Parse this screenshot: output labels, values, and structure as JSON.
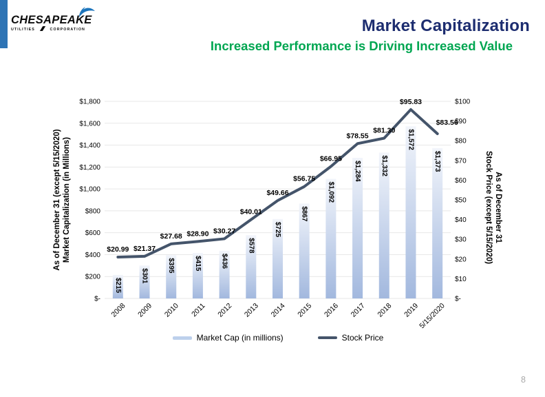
{
  "slide": {
    "logo": {
      "brand": "CHESAPEAKE",
      "sub_left": "UTILITIES",
      "sub_right": "CORPORATION"
    },
    "title": "Market Capitalization",
    "subtitle": "Increased Performance is Driving Increased Value",
    "page_number": "8"
  },
  "legend": {
    "market_cap_label": "Market Cap (in millions)",
    "stock_price_label": "Stock Price"
  },
  "chart_data": {
    "type": "combo",
    "categories": [
      "2008",
      "2009",
      "2010",
      "2011",
      "2012",
      "2013",
      "2014",
      "2015",
      "2016",
      "2017",
      "2018",
      "2019",
      "5/15/2020"
    ],
    "series": [
      {
        "name": "Market Cap (in millions)",
        "type": "bar",
        "axis": "left",
        "values": [
          215,
          301,
          395,
          415,
          436,
          578,
          725,
          867,
          1092,
          1284,
          1332,
          1572,
          1373
        ],
        "labels": [
          "$215",
          "$301",
          "$395",
          "$415",
          "$436",
          "$578",
          "$725",
          "$867",
          "$1,092",
          "$1,284",
          "$1,332",
          "$1,572",
          "$1,373"
        ]
      },
      {
        "name": "Stock Price",
        "type": "line",
        "axis": "right",
        "values": [
          20.99,
          21.37,
          27.68,
          28.9,
          30.27,
          40.01,
          49.66,
          56.75,
          66.95,
          78.55,
          81.3,
          95.83,
          83.56
        ],
        "labels": [
          "$20.99",
          "$21.37",
          "$27.68",
          "$28.90",
          "$30.27",
          "$40.01",
          "$49.66",
          "$56.75",
          "$66.95",
          "$78.55",
          "$81.30",
          "$95.83",
          "$83.56"
        ]
      }
    ],
    "left_axis": {
      "title_line1": "As of December 31 (except 5/15/2020)",
      "title_line2": "Market Capitalization (in Millions)",
      "min": 0,
      "max": 1800,
      "step": 200,
      "tick_labels": [
        "$-",
        "$200",
        "$400",
        "$600",
        "$800",
        "$1,000",
        "$1,200",
        "$1,400",
        "$1,600",
        "$1,800"
      ]
    },
    "right_axis": {
      "title_line1": "As of December 31",
      "title_line2": "Stock Price (except 5/15/2020)",
      "min": 0,
      "max": 100,
      "step": 10,
      "tick_labels": [
        "$-",
        "$10",
        "$20",
        "$30",
        "$40",
        "$50",
        "$60",
        "$70",
        "$80",
        "$90",
        "$100"
      ]
    },
    "grid": true,
    "legend_position": "bottom",
    "colors": {
      "bar_top": "#f2f5fb",
      "bar_bottom": "#a2b8de",
      "line": "#44546a",
      "gridline": "#e7e7e7",
      "title_navy": "#1d2d70",
      "subtitle_green": "#00a651",
      "accent_blue": "#2e74b5"
    }
  }
}
